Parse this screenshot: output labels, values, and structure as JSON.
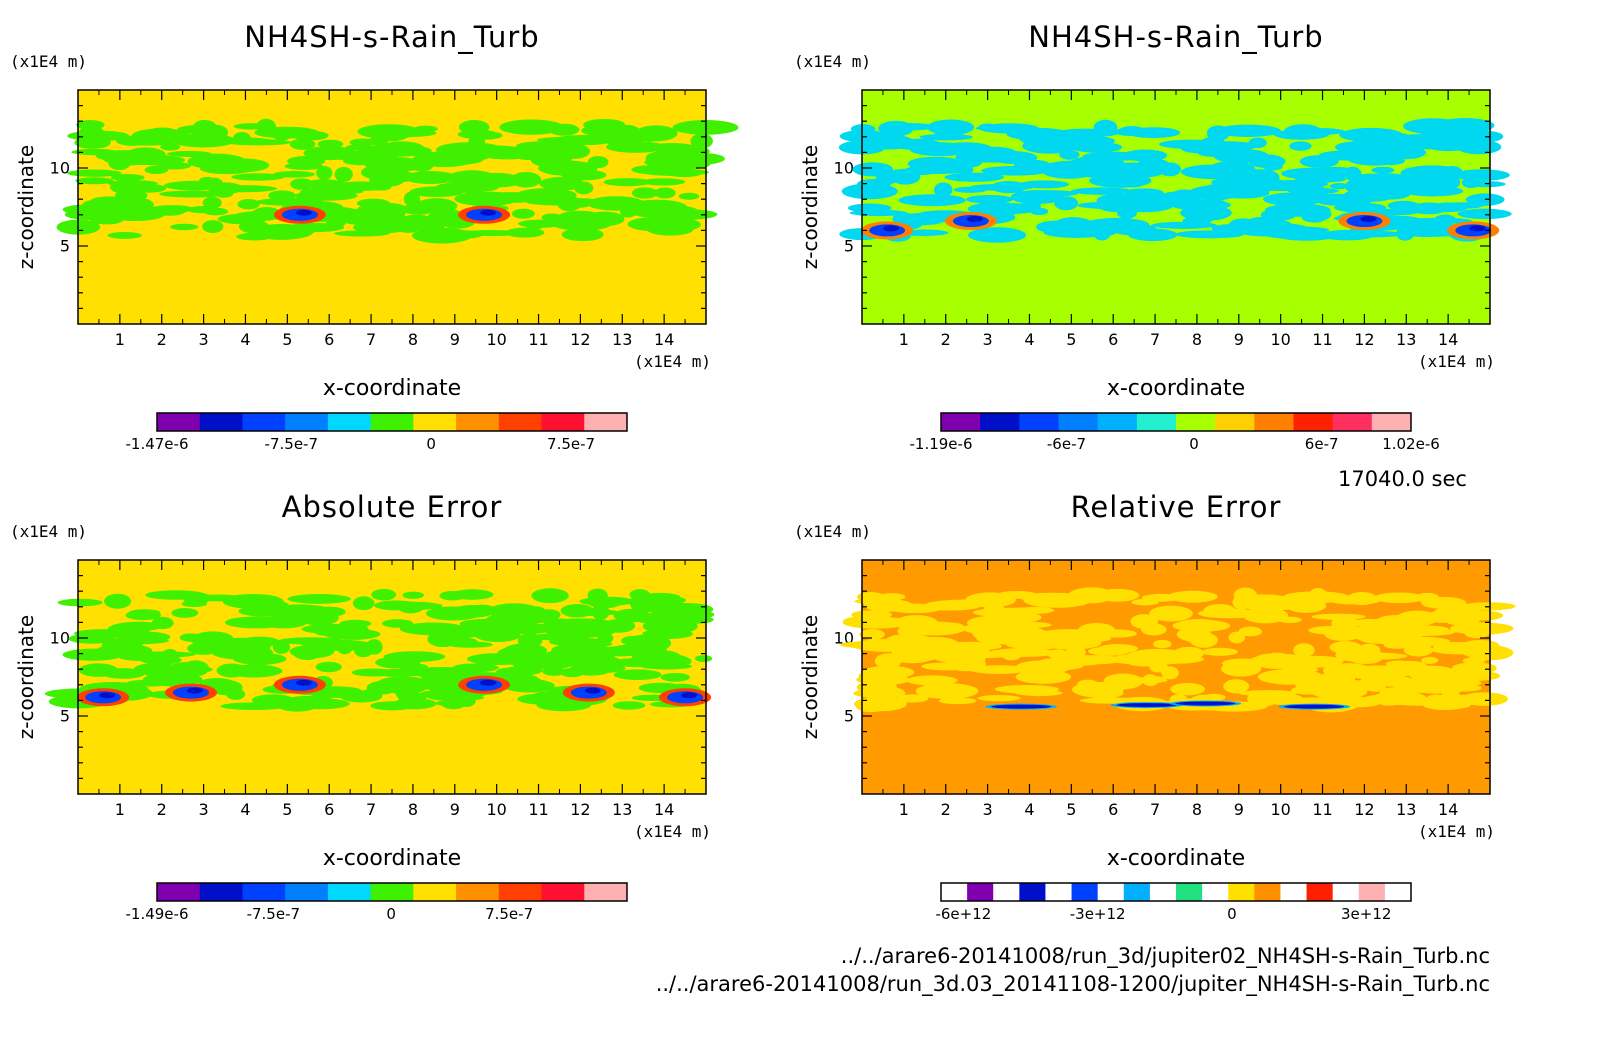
{
  "time_label": "17040.0 sec",
  "file_paths": [
    "../../arare6-20141008/run_3d/jupiter02_NH4SH-s-Rain_Turb.nc",
    "../../arare6-20141008/run_3d.03_20141108-1200/jupiter_NH4SH-s-Rain_Turb.nc"
  ],
  "chart_data": [
    {
      "type": "heatmap",
      "title": "NH4SH-s-Rain_Turb",
      "xlabel": "x-coordinate",
      "ylabel": "z-coordinate",
      "x_unit": "(x1E4 m)",
      "y_unit": "(x1E4 m)",
      "xlim": [
        0,
        15
      ],
      "ylim": [
        0,
        15
      ],
      "x_ticks": [
        "1",
        "2",
        "3",
        "4",
        "5",
        "6",
        "7",
        "8",
        "9",
        "10",
        "11",
        "12",
        "13",
        "14"
      ],
      "y_ticks": [
        "5",
        "10"
      ],
      "background_color": "#ffe000",
      "feature_color": "#3ff000",
      "colorbar": {
        "colors": [
          "#8000b0",
          "#0010c8",
          "#0040ff",
          "#0080ff",
          "#00d8ff",
          "#3ff000",
          "#ffe000",
          "#ff9000",
          "#ff4000",
          "#ff1030",
          "#ffb0b0"
        ],
        "tick_labels": [
          "-1.47e-6",
          "-7.5e-7",
          "0",
          "7.5e-7"
        ],
        "tick_values": [
          -1.47e-06,
          -7.5e-07,
          0,
          7.5e-07
        ],
        "range": [
          -1.47e-06,
          1.05e-06
        ]
      }
    },
    {
      "type": "heatmap",
      "title": "NH4SH-s-Rain_Turb",
      "xlabel": "x-coordinate",
      "ylabel": "z-coordinate",
      "x_unit": "(x1E4 m)",
      "y_unit": "(x1E4 m)",
      "xlim": [
        0,
        15
      ],
      "ylim": [
        0,
        15
      ],
      "x_ticks": [
        "1",
        "2",
        "3",
        "4",
        "5",
        "6",
        "7",
        "8",
        "9",
        "10",
        "11",
        "12",
        "13",
        "14"
      ],
      "y_ticks": [
        "5",
        "10"
      ],
      "background_color": "#a8ff00",
      "feature_color": "#00d8f0",
      "colorbar": {
        "colors": [
          "#8000b0",
          "#0010c8",
          "#0040ff",
          "#0080ff",
          "#00b0ff",
          "#20f0d0",
          "#a8ff00",
          "#ffd000",
          "#ff8000",
          "#ff2000",
          "#ff3060",
          "#ffb0b0"
        ],
        "tick_labels": [
          "-1.19e-6",
          "-6e-7",
          "0",
          "6e-7",
          "1.02e-6"
        ],
        "tick_values": [
          -1.19e-06,
          -6e-07,
          0,
          6e-07,
          1.02e-06
        ],
        "range": [
          -1.19e-06,
          1.02e-06
        ]
      }
    },
    {
      "type": "heatmap",
      "title": "Absolute Error",
      "xlabel": "x-coordinate",
      "ylabel": "z-coordinate",
      "x_unit": "(x1E4 m)",
      "y_unit": "(x1E4 m)",
      "xlim": [
        0,
        15
      ],
      "ylim": [
        0,
        15
      ],
      "x_ticks": [
        "1",
        "2",
        "3",
        "4",
        "5",
        "6",
        "7",
        "8",
        "9",
        "10",
        "11",
        "12",
        "13",
        "14"
      ],
      "y_ticks": [
        "5",
        "10"
      ],
      "background_color": "#ffe000",
      "feature_color": "#3ff000",
      "colorbar": {
        "colors": [
          "#8000b0",
          "#0010c8",
          "#0040ff",
          "#0080ff",
          "#00d8ff",
          "#3ff000",
          "#ffe000",
          "#ff9000",
          "#ff4000",
          "#ff1030",
          "#ffb0b0"
        ],
        "tick_labels": [
          "-1.49e-6",
          "-7.5e-7",
          "0",
          "7.5e-7"
        ],
        "tick_values": [
          -1.49e-06,
          -7.5e-07,
          0,
          7.5e-07
        ],
        "range": [
          -1.49e-06,
          1.5e-06
        ]
      }
    },
    {
      "type": "heatmap",
      "title": "Relative Error",
      "xlabel": "x-coordinate",
      "ylabel": "z-coordinate",
      "x_unit": "(x1E4 m)",
      "y_unit": "(x1E4 m)",
      "xlim": [
        0,
        15
      ],
      "ylim": [
        0,
        15
      ],
      "x_ticks": [
        "1",
        "2",
        "3",
        "4",
        "5",
        "6",
        "7",
        "8",
        "9",
        "10",
        "11",
        "12",
        "13",
        "14"
      ],
      "y_ticks": [
        "5",
        "10"
      ],
      "background_color": "#ff9a00",
      "feature_color": "#ffe000",
      "colorbar": {
        "colors": [
          "#ffffff",
          "#8000b0",
          "#ffffff",
          "#0010c8",
          "#ffffff",
          "#0040ff",
          "#ffffff",
          "#00b0ff",
          "#ffffff",
          "#20e080",
          "#ffffff",
          "#ffe000",
          "#ff9000",
          "#ffffff",
          "#ff2000",
          "#ffffff",
          "#ffb0b0",
          "#ffffff"
        ],
        "tick_labels": [
          "-6e+12",
          "-3e+12",
          "0",
          "3e+12"
        ],
        "tick_values": [
          -6000000000000.0,
          -3000000000000.0,
          0,
          3000000000000.0
        ],
        "range": [
          -6500000000000.0,
          4000000000000.0
        ]
      }
    }
  ]
}
